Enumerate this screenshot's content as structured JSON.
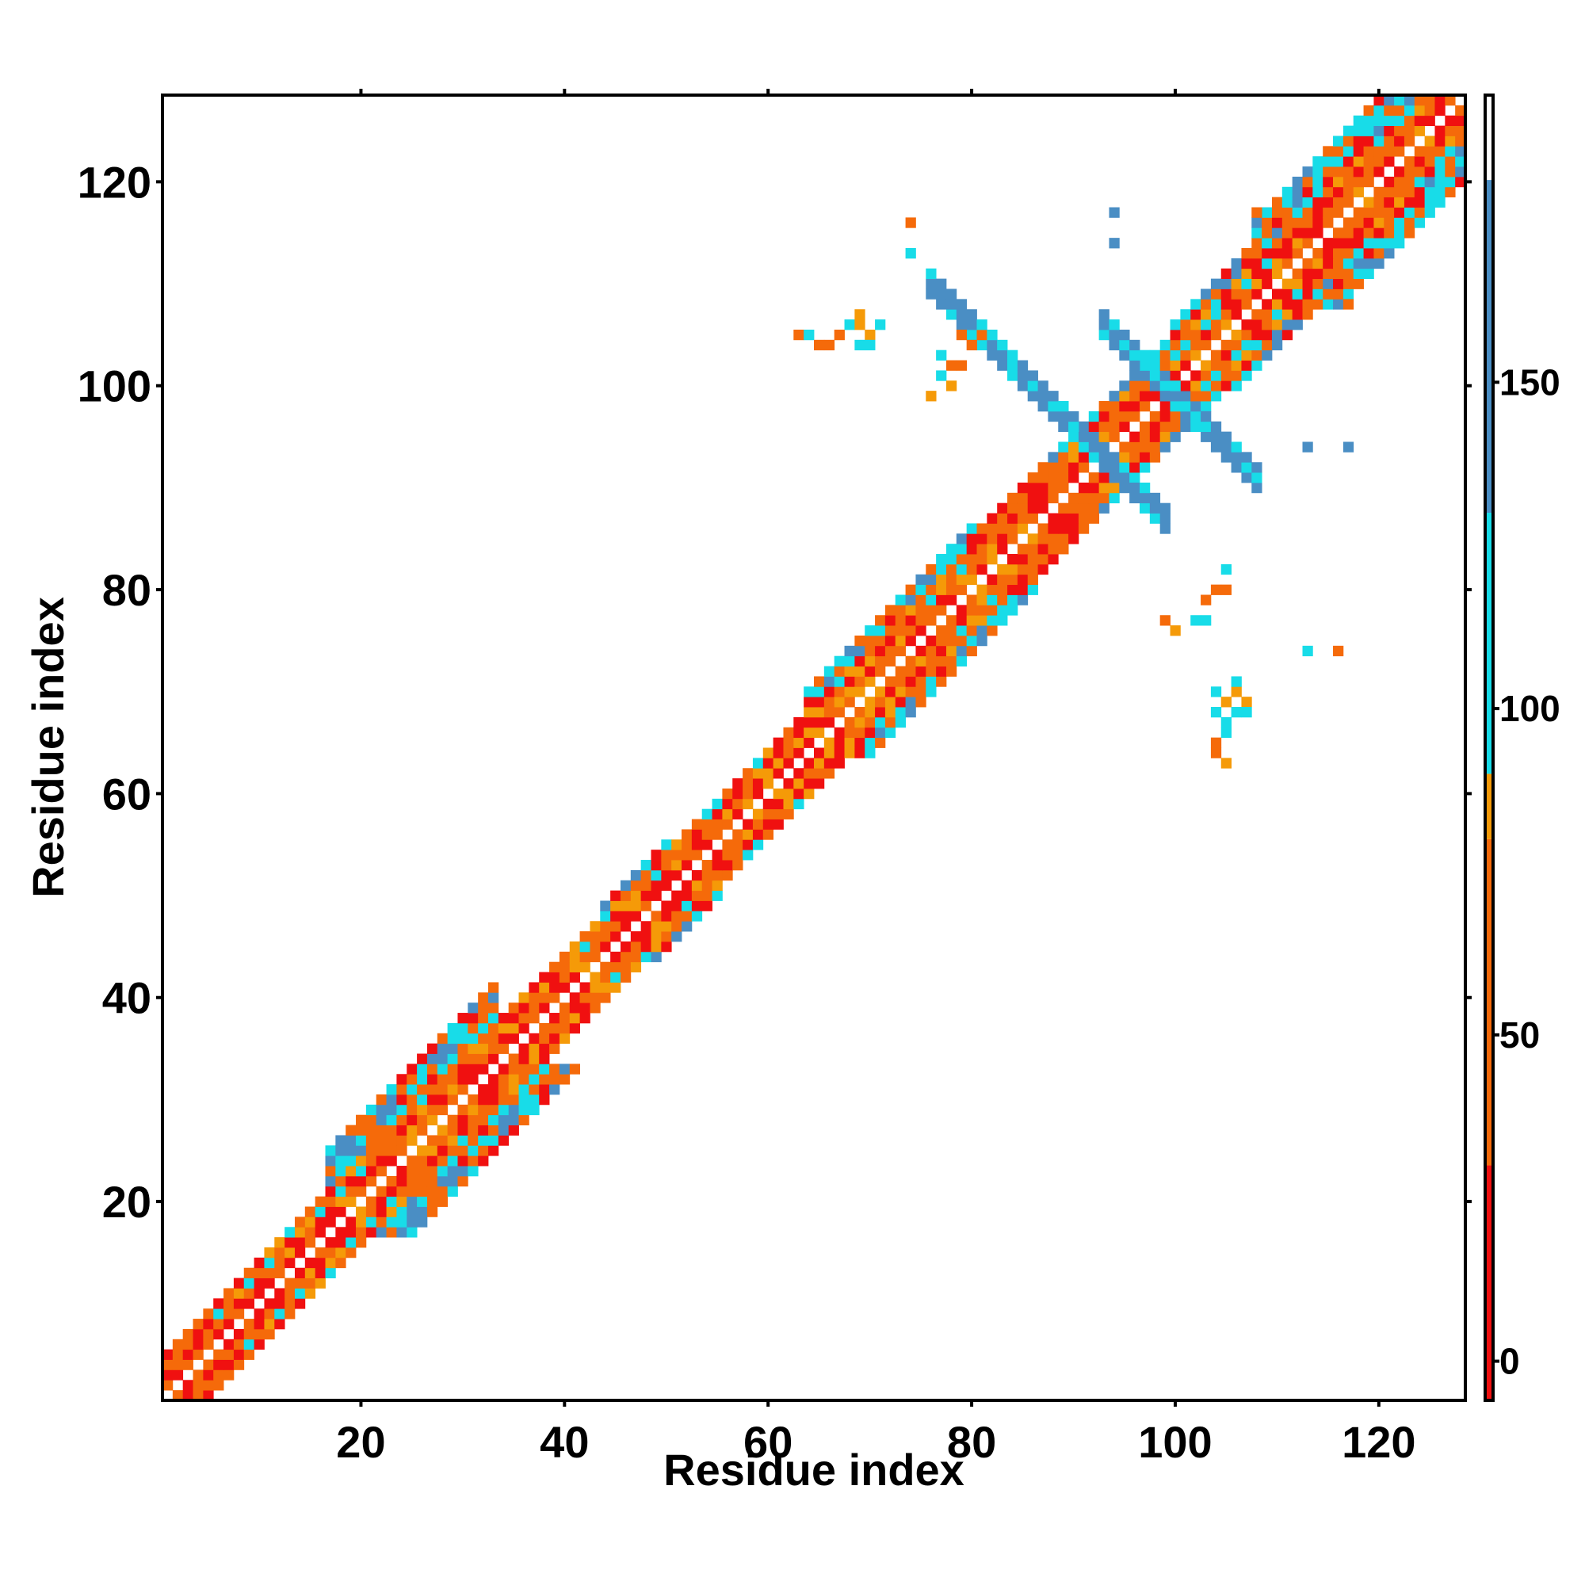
{
  "chart_data": {
    "type": "heatmap",
    "title": "",
    "xlabel": "Residue index",
    "ylabel": "Residue index",
    "xlim": [
      1,
      128
    ],
    "ylim": [
      1,
      128
    ],
    "x_ticks": [
      20,
      40,
      60,
      80,
      100,
      120
    ],
    "y_ticks": [
      20,
      40,
      60,
      80,
      100,
      120
    ],
    "colorbar": {
      "ticks": [
        0,
        50,
        100,
        150
      ],
      "range": [
        -6,
        194
      ],
      "bands": [
        {
          "from": -6,
          "to": 30,
          "color": "#f01010"
        },
        {
          "from": 30,
          "to": 80,
          "color": "#f56a0a"
        },
        {
          "from": 80,
          "to": 90,
          "color": "#f59a08"
        },
        {
          "from": 90,
          "to": 130,
          "color": "#18dce8"
        },
        {
          "from": 130,
          "to": 181,
          "color": "#4a8ec4"
        },
        {
          "from": 181,
          "to": 194,
          "color": "#ffffff"
        }
      ]
    },
    "diagonal_segments": [
      {
        "from": 1,
        "to": 17,
        "offsets": [
          1,
          2,
          3,
          4
        ]
      },
      {
        "from": 17,
        "to": 33,
        "offsets": [
          1,
          2,
          3,
          4,
          5,
          6,
          7,
          8
        ]
      },
      {
        "from": 33,
        "to": 44,
        "offsets": [
          1,
          2,
          3,
          4
        ]
      },
      {
        "from": 44,
        "to": 50,
        "offsets": [
          1,
          2,
          3,
          4,
          5
        ]
      },
      {
        "from": 50,
        "to": 64,
        "offsets": [
          1,
          2,
          3,
          4
        ]
      },
      {
        "from": 64,
        "to": 80,
        "offsets": [
          1,
          2,
          3,
          4,
          5,
          6
        ]
      },
      {
        "from": 80,
        "to": 90,
        "offsets": [
          1,
          2,
          3,
          4,
          5
        ]
      },
      {
        "from": 90,
        "to": 100,
        "offsets": [
          1,
          2,
          3,
          4,
          5
        ]
      },
      {
        "from": 100,
        "to": 108,
        "offsets": [
          1,
          2,
          3,
          4,
          5,
          6
        ]
      },
      {
        "from": 108,
        "to": 128,
        "offsets": [
          1,
          2,
          3,
          4,
          5,
          6,
          7,
          8
        ]
      }
    ],
    "cross_strands": [
      {
        "line": 186,
        "from": 76,
        "to": 99,
        "width": 3,
        "values": [
          150,
          110
        ]
      },
      {
        "line": 186,
        "from": 86,
        "to": 98,
        "width": 3,
        "values": [
          150,
          110
        ]
      },
      {
        "line": 199,
        "from": 93,
        "to": 108,
        "width": 3,
        "values": [
          150,
          110
        ]
      },
      {
        "line": 199,
        "from": 100,
        "to": 106,
        "width": 3,
        "values": [
          150,
          110
        ]
      }
    ],
    "isolated_cells": [
      {
        "x": 94,
        "y": 117,
        "v": 150
      },
      {
        "x": 94,
        "y": 114,
        "v": 150
      },
      {
        "x": 74,
        "y": 116,
        "v": 60
      },
      {
        "x": 74,
        "y": 113,
        "v": 110
      },
      {
        "x": 113,
        "y": 94,
        "v": 150
      },
      {
        "x": 117,
        "y": 94,
        "v": 150
      },
      {
        "x": 113,
        "y": 74,
        "v": 110
      },
      {
        "x": 116,
        "y": 74,
        "v": 60
      },
      {
        "x": 63,
        "y": 105,
        "v": 60
      },
      {
        "x": 64,
        "y": 105,
        "v": 110
      },
      {
        "x": 65,
        "y": 104,
        "v": 40
      },
      {
        "x": 66,
        "y": 104,
        "v": 40
      },
      {
        "x": 67,
        "y": 105,
        "v": 60
      },
      {
        "x": 68,
        "y": 106,
        "v": 110
      },
      {
        "x": 69,
        "y": 106,
        "v": 85
      },
      {
        "x": 69,
        "y": 107,
        "v": 85
      },
      {
        "x": 70,
        "y": 105,
        "v": 85
      },
      {
        "x": 70,
        "y": 104,
        "v": 110
      },
      {
        "x": 71,
        "y": 106,
        "v": 110
      },
      {
        "x": 69,
        "y": 104,
        "v": 110
      },
      {
        "x": 79,
        "y": 105,
        "v": 60
      },
      {
        "x": 80,
        "y": 104,
        "v": 40
      },
      {
        "x": 81,
        "y": 105,
        "v": 60
      },
      {
        "x": 78,
        "y": 102,
        "v": 40
      },
      {
        "x": 79,
        "y": 102,
        "v": 40
      },
      {
        "x": 77,
        "y": 103,
        "v": 110
      },
      {
        "x": 77,
        "y": 101,
        "v": 110
      },
      {
        "x": 76,
        "y": 99,
        "v": 85
      },
      {
        "x": 78,
        "y": 100,
        "v": 85
      },
      {
        "x": 82,
        "y": 105,
        "v": 110
      },
      {
        "x": 105,
        "y": 82,
        "v": 110
      },
      {
        "x": 104,
        "y": 80,
        "v": 60
      },
      {
        "x": 105,
        "y": 80,
        "v": 40
      },
      {
        "x": 103,
        "y": 79,
        "v": 60
      },
      {
        "x": 102,
        "y": 77,
        "v": 110
      },
      {
        "x": 103,
        "y": 77,
        "v": 110
      },
      {
        "x": 100,
        "y": 76,
        "v": 85
      },
      {
        "x": 99,
        "y": 77,
        "v": 60
      },
      {
        "x": 104,
        "y": 70,
        "v": 110
      },
      {
        "x": 105,
        "y": 69,
        "v": 85
      },
      {
        "x": 106,
        "y": 70,
        "v": 85
      },
      {
        "x": 106,
        "y": 71,
        "v": 110
      },
      {
        "x": 107,
        "y": 69,
        "v": 85
      },
      {
        "x": 104,
        "y": 68,
        "v": 110
      },
      {
        "x": 105,
        "y": 67,
        "v": 110
      },
      {
        "x": 106,
        "y": 68,
        "v": 110
      },
      {
        "x": 107,
        "y": 68,
        "v": 110
      },
      {
        "x": 105,
        "y": 66,
        "v": 110
      },
      {
        "x": 104,
        "y": 65,
        "v": 60
      },
      {
        "x": 104,
        "y": 64,
        "v": 60
      },
      {
        "x": 105,
        "y": 63,
        "v": 85
      },
      {
        "x": 108,
        "y": 117,
        "v": 60
      },
      {
        "x": 117,
        "y": 108,
        "v": 60
      }
    ]
  }
}
